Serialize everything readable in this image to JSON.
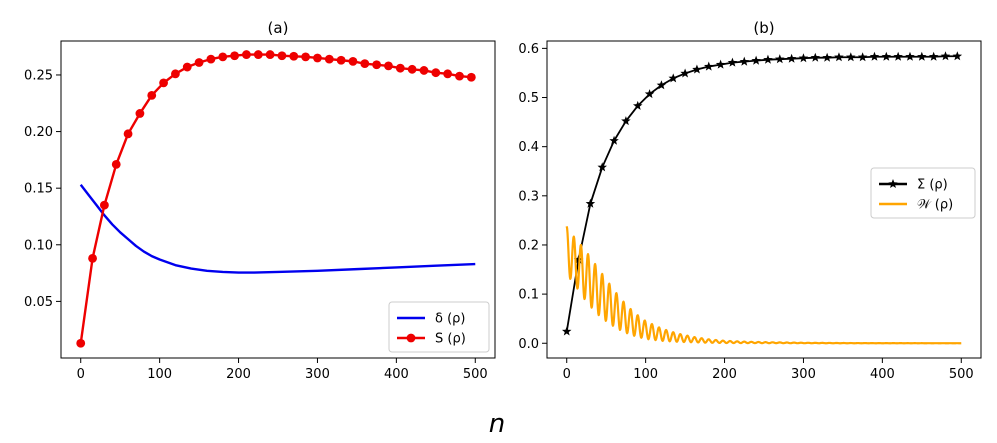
{
  "figure": {
    "shared_xlabel": "n"
  },
  "chart_data": [
    {
      "type": "line",
      "title": "(a)",
      "xlabel": "",
      "ylabel": "",
      "xlim": [
        -25,
        525
      ],
      "ylim": [
        0.0,
        0.28
      ],
      "xticks": [
        0,
        100,
        200,
        300,
        400,
        500
      ],
      "yticks": [
        0.05,
        0.1,
        0.15,
        0.2,
        0.25
      ],
      "xtick_labels": [
        "0",
        "100",
        "200",
        "300",
        "400",
        "500"
      ],
      "ytick_labels": [
        "0.05",
        "0.10",
        "0.15",
        "0.20",
        "0.25"
      ],
      "legend": {
        "position": "lower-right",
        "entries": [
          "δ (ρ)",
          "S (ρ)"
        ]
      },
      "series": [
        {
          "name": "δ (ρ)",
          "color": "#0000ee",
          "marker": "none",
          "x": [
            0,
            10,
            20,
            30,
            40,
            50,
            60,
            70,
            80,
            90,
            100,
            120,
            140,
            160,
            180,
            200,
            220,
            250,
            300,
            350,
            400,
            450,
            500
          ],
          "values": [
            0.153,
            0.144,
            0.135,
            0.126,
            0.118,
            0.111,
            0.105,
            0.099,
            0.094,
            0.09,
            0.087,
            0.082,
            0.079,
            0.077,
            0.076,
            0.0755,
            0.0755,
            0.076,
            0.077,
            0.0785,
            0.08,
            0.0815,
            0.083
          ]
        },
        {
          "name": "S (ρ)",
          "color": "#ee0000",
          "marker": "circle",
          "x": [
            0,
            15,
            30,
            45,
            60,
            75,
            90,
            105,
            120,
            135,
            150,
            165,
            180,
            195,
            210,
            225,
            240,
            255,
            270,
            285,
            300,
            315,
            330,
            345,
            360,
            375,
            390,
            405,
            420,
            435,
            450,
            465,
            480,
            495
          ],
          "values": [
            0.013,
            0.088,
            0.135,
            0.171,
            0.198,
            0.216,
            0.232,
            0.243,
            0.251,
            0.257,
            0.261,
            0.264,
            0.266,
            0.267,
            0.268,
            0.268,
            0.268,
            0.267,
            0.2665,
            0.266,
            0.265,
            0.264,
            0.263,
            0.262,
            0.26,
            0.259,
            0.258,
            0.256,
            0.255,
            0.254,
            0.252,
            0.251,
            0.249,
            0.248
          ]
        }
      ]
    },
    {
      "type": "line",
      "title": "(b)",
      "xlabel": "",
      "ylabel": "",
      "xlim": [
        -25,
        525
      ],
      "ylim": [
        -0.03,
        0.615
      ],
      "xticks": [
        0,
        100,
        200,
        300,
        400,
        500
      ],
      "yticks": [
        0.0,
        0.1,
        0.2,
        0.3,
        0.4,
        0.5,
        0.6
      ],
      "xtick_labels": [
        "0",
        "100",
        "200",
        "300",
        "400",
        "500"
      ],
      "ytick_labels": [
        "0.0",
        "0.1",
        "0.2",
        "0.3",
        "0.4",
        "0.5",
        "0.6"
      ],
      "legend": {
        "position": "center-right",
        "entries": [
          "Σ (ρ)",
          "𝒲 (ρ)"
        ]
      },
      "series": [
        {
          "name": "Σ (ρ)",
          "color": "#000000",
          "marker": "star",
          "x": [
            0,
            15,
            30,
            45,
            60,
            75,
            90,
            105,
            120,
            135,
            150,
            165,
            180,
            195,
            210,
            225,
            240,
            255,
            270,
            285,
            300,
            315,
            330,
            345,
            360,
            375,
            390,
            405,
            420,
            435,
            450,
            465,
            480,
            495
          ],
          "values": [
            0.024,
            0.17,
            0.284,
            0.358,
            0.412,
            0.452,
            0.483,
            0.507,
            0.525,
            0.539,
            0.549,
            0.557,
            0.563,
            0.567,
            0.571,
            0.573,
            0.575,
            0.577,
            0.578,
            0.579,
            0.58,
            0.581,
            0.581,
            0.582,
            0.582,
            0.582,
            0.583,
            0.583,
            0.583,
            0.583,
            0.583,
            0.583,
            0.584,
            0.584
          ]
        },
        {
          "name": "𝒲 (ρ)",
          "color": "#ffa500",
          "marker": "none",
          "envelope": {
            "x": [
              0,
              5,
              10,
              20,
              30,
              40,
              50,
              60,
              70,
              80,
              90,
              100,
              120,
              140,
              160,
              180,
              200,
              230,
              260,
              300,
              350,
              400,
              500
            ],
            "upper": [
              0.238,
              0.225,
              0.215,
              0.196,
              0.175,
              0.152,
              0.13,
              0.108,
              0.088,
              0.071,
              0.057,
              0.045,
              0.03,
              0.02,
              0.013,
              0.008,
              0.005,
              0.003,
              0.002,
              0.001,
              0.0005,
              0.0003,
              0.0001
            ],
            "lower": [
              0.14,
              0.13,
              0.12,
              0.095,
              0.075,
              0.058,
              0.045,
              0.034,
              0.025,
              0.018,
              0.013,
              0.009,
              0.005,
              0.003,
              0.002,
              0.001,
              0.0005,
              0.0003,
              0.0002,
              0.0001,
              0.0,
              0.0,
              0.0
            ]
          },
          "oscillation_period": 9
        }
      ]
    }
  ]
}
